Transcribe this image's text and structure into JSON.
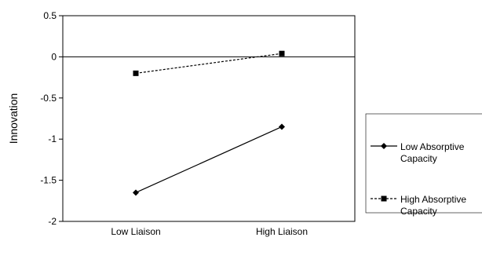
{
  "chart_data": {
    "type": "line",
    "title": "",
    "xlabel": "",
    "ylabel": "Innovation",
    "categories": [
      "Low Liaison",
      "High Liaison"
    ],
    "ylim": [
      -2,
      0.5
    ],
    "yticks": [
      0.5,
      0,
      -0.5,
      -1,
      -1.5,
      -2
    ],
    "ytick_labels": [
      "0.5",
      "0",
      "-0.5",
      "-1",
      "-1.5",
      "-2"
    ],
    "grid": false,
    "zero_line": true,
    "legend_position": "right",
    "series": [
      {
        "name_lines": [
          "Low Absorptive",
          "Capacity"
        ],
        "values": [
          -1.65,
          -0.85
        ],
        "marker": "diamond",
        "line_style": "solid",
        "color": "#000000"
      },
      {
        "name_lines": [
          "High Absorptive",
          "Capacity"
        ],
        "values": [
          -0.2,
          0.04
        ],
        "marker": "square",
        "line_style": "dashed",
        "color": "#000000"
      }
    ]
  }
}
